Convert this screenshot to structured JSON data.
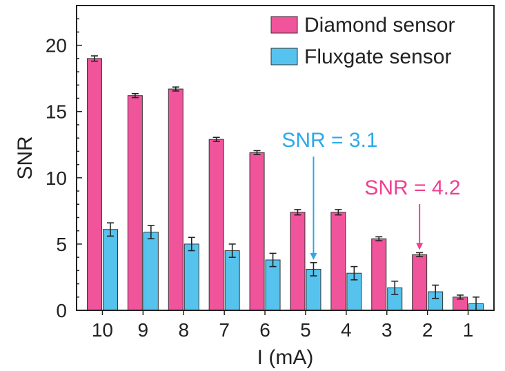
{
  "chart_data": {
    "type": "bar",
    "xlabel": "I (mA)",
    "ylabel": "SNR",
    "ylim": [
      0,
      23
    ],
    "yticks": [
      0,
      5,
      10,
      15,
      20
    ],
    "categories": [
      "10",
      "9",
      "8",
      "7",
      "6",
      "5",
      "4",
      "3",
      "2",
      "1"
    ],
    "series": [
      {
        "name": "Diamond sensor",
        "color": "#f0549b",
        "values": [
          19.0,
          16.2,
          16.7,
          12.9,
          11.9,
          7.4,
          7.4,
          5.4,
          4.2,
          1.0
        ],
        "errors": [
          0.2,
          0.15,
          0.15,
          0.15,
          0.15,
          0.2,
          0.2,
          0.15,
          0.15,
          0.15
        ]
      },
      {
        "name": "Fluxgate sensor",
        "color": "#56c3ee",
        "values": [
          6.1,
          5.9,
          5.0,
          4.5,
          3.8,
          3.1,
          2.8,
          1.7,
          1.4,
          0.5
        ],
        "errors": [
          0.5,
          0.5,
          0.5,
          0.5,
          0.5,
          0.5,
          0.5,
          0.5,
          0.5,
          0.5
        ]
      }
    ],
    "legend": "top-right",
    "annotations": [
      {
        "text": "SNR = 3.1",
        "color": "#2aa9ea",
        "category": "5",
        "series": "Fluxgate sensor",
        "value": 3.1
      },
      {
        "text": "SNR = 4.2",
        "color": "#ef3f93",
        "category": "2",
        "series": "Diamond sensor",
        "value": 4.2
      }
    ]
  }
}
